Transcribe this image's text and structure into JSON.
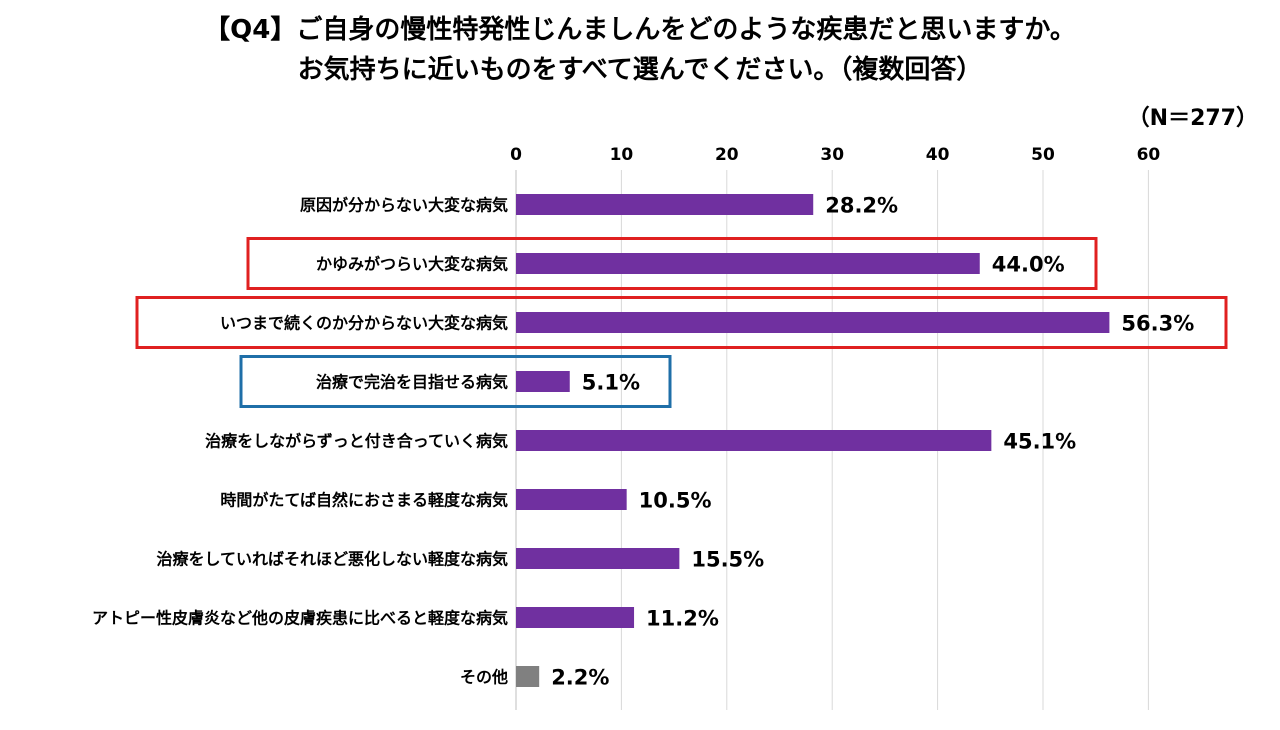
{
  "title": {
    "line1": "【Q4】ご自身の慢性特発性じんましんをどのような疾患だと思いますか。",
    "line2": "お気持ちに近いものをすべて選んでください。（複数回答）"
  },
  "sample_note": "（N＝277）",
  "colors": {
    "bar": "#7030a0",
    "other_bar": "#808080",
    "grid": "#d9d9d9",
    "highlight_red": "#e02020",
    "highlight_blue": "#1f6fa8"
  },
  "chart_data": {
    "type": "bar",
    "orientation": "horizontal",
    "xlim": [
      0,
      60
    ],
    "xticks": [
      0,
      10,
      20,
      30,
      40,
      50,
      60
    ],
    "grid": true,
    "categories": [
      "原因が分からない大変な病気",
      "かゆみがつらい大変な病気",
      "いつまで続くのか分からない大変な病気",
      "治療で完治を目指せる病気",
      "治療をしながらずっと付き合っていく病気",
      "時間がたてば自然におさまる軽度な病気",
      "治療をしていればそれほど悪化しない軽度な病気",
      "アトピー性皮膚炎など他の皮膚疾患に比べると軽度な病気",
      "その他"
    ],
    "values": [
      28.2,
      44.0,
      56.3,
      5.1,
      45.1,
      10.5,
      15.5,
      11.2,
      2.2
    ],
    "value_labels": [
      "28.2%",
      "44.0%",
      "56.3%",
      "5.1%",
      "45.1%",
      "10.5%",
      "15.5%",
      "11.2%",
      "2.2%"
    ],
    "bar_colors": [
      "bar",
      "bar",
      "bar",
      "bar",
      "bar",
      "bar",
      "bar",
      "bar",
      "other_bar"
    ],
    "highlights": [
      {
        "index": 1,
        "color": "highlight_red"
      },
      {
        "index": 2,
        "color": "highlight_red"
      },
      {
        "index": 3,
        "color": "highlight_blue"
      }
    ]
  }
}
